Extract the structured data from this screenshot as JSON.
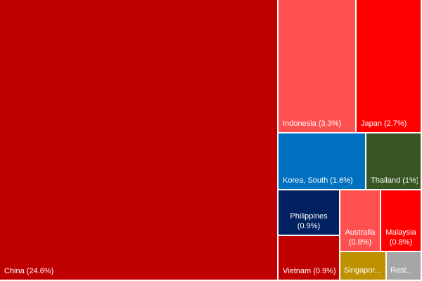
{
  "chart_data": {
    "type": "treemap",
    "title": "",
    "tiles": [
      {
        "name": "China",
        "value": 24.6,
        "label": "China (24.6%)",
        "color": "#c00000"
      },
      {
        "name": "Indonesia",
        "value": 3.3,
        "label": "Indonesia (3.3%)",
        "color": "#ff5050"
      },
      {
        "name": "Japan",
        "value": 2.7,
        "label": "Japan (2.7%)",
        "color": "#ff0000"
      },
      {
        "name": "Korea, South",
        "value": 1.6,
        "label": "Korea, South (1.6%)",
        "color": "#0070c0"
      },
      {
        "name": "Thailand",
        "value": 1.0,
        "label": "Thailand (1%)",
        "color": "#375623"
      },
      {
        "name": "Philippines",
        "value": 0.9,
        "label": "Philippines (0.9%)",
        "color": "#002060"
      },
      {
        "name": "Australia",
        "value": 0.8,
        "label": "Australia (0.8%)",
        "color": "#ff5050"
      },
      {
        "name": "Malaysia",
        "value": 0.8,
        "label": "Malaysia (0.8%)",
        "color": "#ff0000"
      },
      {
        "name": "Vietnam",
        "value": 0.9,
        "label": "Vietnam (0.9%)",
        "color": "#c00000"
      },
      {
        "name": "Singapore",
        "value": null,
        "label": "Singapor...",
        "color": "#bf9000"
      },
      {
        "name": "Rest",
        "value": null,
        "label": "Rest...",
        "color": "#a6a6a6"
      }
    ]
  }
}
